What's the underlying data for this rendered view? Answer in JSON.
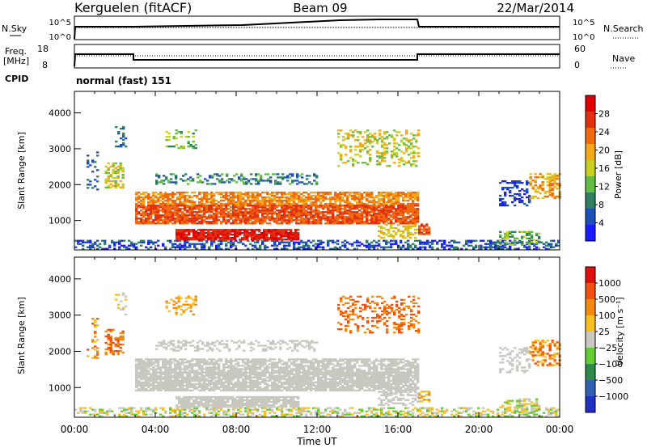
{
  "header": {
    "site": "Kerguelen (fitACF)",
    "beam": "Beam 09",
    "date": "22/Mar/2014"
  },
  "top_panels": {
    "nsky_label": "N.Sky",
    "nsky_ticks": [
      "10^5",
      "10^0"
    ],
    "nsearch_label": "N.Search",
    "nsearch_ticks": [
      "10^5",
      "10^0"
    ],
    "freq_label_1": "Freq.",
    "freq_label_2": "[MHz]",
    "freq_ticks": [
      "18",
      "8"
    ],
    "nave_label": "Nave",
    "nave_ticks": [
      "60",
      "0"
    ],
    "cpid_label": "CPID",
    "cpid_text": "normal (fast) 151"
  },
  "chart_data": [
    {
      "type": "heatmap",
      "name": "power",
      "ylabel": "Slant Range [km]",
      "xlabel": "Time UT",
      "x_ticks": [
        "00:00",
        "04:00",
        "08:00",
        "12:00",
        "16:00",
        "20:00",
        "00:00"
      ],
      "x_range_hours": [
        0,
        24
      ],
      "ylim": [
        180,
        4600
      ],
      "y_ticks": [
        1000,
        2000,
        3000,
        4000
      ],
      "colorbar_label": "Power [dB]",
      "colorbar_ticks": [
        "28",
        "24",
        "20",
        "16",
        "12",
        "8",
        "4"
      ],
      "colors": [
        "#1a1aff",
        "#1e4fb8",
        "#2f7f60",
        "#66bb44",
        "#c8d020",
        "#f2a81a",
        "#f06a10",
        "#e03010",
        "#e00000"
      ]
    },
    {
      "type": "heatmap",
      "name": "velocity",
      "ylabel": "Slant Range [km]",
      "xlabel": "Time UT",
      "x_ticks": [
        "00:00",
        "04:00",
        "08:00",
        "12:00",
        "16:00",
        "20:00",
        "00:00"
      ],
      "x_range_hours": [
        0,
        24
      ],
      "ylim": [
        180,
        4600
      ],
      "y_ticks": [
        1000,
        2000,
        3000,
        4000
      ],
      "colorbar_label": "Velocity [m s⁻¹]",
      "colorbar_ticks": [
        "1000",
        "500",
        "100",
        "25",
        "−25",
        "−100",
        "−500",
        "−1000"
      ],
      "colors": [
        "#2030c0",
        "#3060b0",
        "#2e8a4a",
        "#66cc33",
        "#c8c8c0",
        "#f5c020",
        "#f28a10",
        "#f05010",
        "#e01010"
      ]
    }
  ],
  "ground_scatter_color": "#c8c8c0"
}
